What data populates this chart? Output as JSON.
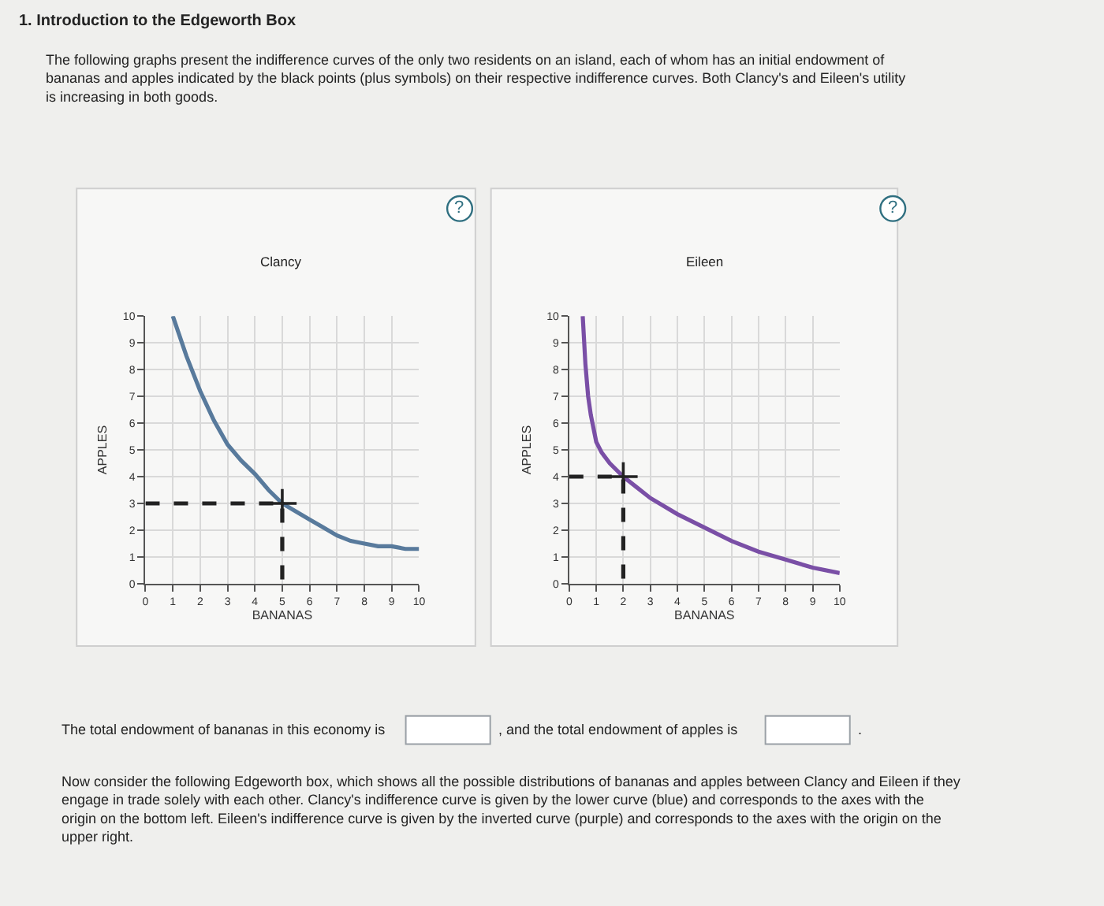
{
  "chart_data": [
    {
      "type": "line",
      "title": "Clancy",
      "xlabel": "BANANAS",
      "ylabel": "APPLES",
      "xlim": [
        0,
        10
      ],
      "ylim": [
        0,
        10
      ],
      "xticks": [
        0,
        1,
        2,
        3,
        4,
        5,
        6,
        7,
        8,
        9,
        10
      ],
      "yticks": [
        0,
        1,
        2,
        3,
        4,
        5,
        6,
        7,
        8,
        9,
        10
      ],
      "grid": true,
      "series": [
        {
          "color": "#587a9c",
          "x": [
            1,
            1.5,
            2,
            2.5,
            3,
            3.5,
            4,
            4.5,
            5,
            5.5,
            6,
            6.5,
            7,
            7.5,
            8,
            8.5,
            9,
            9.5,
            10
          ],
          "values": [
            10,
            8.5,
            7.2,
            6.1,
            5.2,
            4.6,
            4.1,
            3.5,
            3.0,
            2.7,
            2.4,
            2.1,
            1.8,
            1.6,
            1.5,
            1.4,
            1.4,
            1.3,
            1.3
          ]
        },
        {
          "type": "line",
          "color": "#222222",
          "line_style": "dashed",
          "x": [
            0,
            5,
            5
          ],
          "values": [
            3,
            3,
            0
          ]
        },
        {
          "type": "scatter",
          "color": "#222222",
          "marker": "cross",
          "x": [
            5
          ],
          "values": [
            3
          ]
        }
      ],
      "annotations": [
        "1. Introduction to the Edgeworth Box",
        "The following graphs present the indifference curves of the only two residents on an island, each of whom has an initial endowment of bananas and apples indicated by the black points (plus symbols) on their respective indifference curves. Both Clancy's and Eileen's utility is increasing in both goods.",
        "?"
      ]
    },
    {
      "type": "line",
      "title": "Eileen",
      "xlabel": "BANANAS",
      "ylabel": "APPLES",
      "xlim": [
        0,
        10
      ],
      "ylim": [
        0,
        10
      ],
      "xticks": [
        0,
        1,
        2,
        3,
        4,
        5,
        6,
        7,
        8,
        9,
        10
      ],
      "yticks": [
        0,
        1,
        2,
        3,
        4,
        5,
        6,
        7,
        8,
        9,
        10
      ],
      "grid": true,
      "series": [
        {
          "color": "#7a4fa6",
          "x": [
            0.5,
            0.6,
            0.7,
            0.8,
            1.0,
            1.2,
            1.5,
            2,
            2.5,
            3,
            4,
            5,
            6,
            7,
            8,
            9,
            10
          ],
          "values": [
            10,
            8.2,
            7.0,
            6.3,
            5.3,
            4.9,
            4.5,
            4.0,
            3.6,
            3.2,
            2.6,
            2.1,
            1.6,
            1.2,
            0.9,
            0.6,
            0.4
          ]
        },
        {
          "type": "line",
          "color": "#222222",
          "line_style": "dashed",
          "x": [
            0,
            2,
            2
          ],
          "values": [
            4,
            4,
            0
          ]
        },
        {
          "type": "scatter",
          "color": "#222222",
          "marker": "cross",
          "x": [
            2
          ],
          "values": [
            4
          ]
        }
      ],
      "annotations": [
        "?",
        "The total endowment of bananas in this economy is",
        ", and the total endowment of apples is",
        ".",
        "Now consider the following Edgeworth box, which shows all the possible distributions of bananas and apples between Clancy and Eileen if they engage in trade solely with each other. Clancy's indifference curve is given by the lower curve (blue) and corresponds to the axes with the origin on the bottom left. Eileen's indifference curve is given by the inverted curve (purple) and corresponds to the axes with the origin on the upper right."
      ]
    }
  ]
}
